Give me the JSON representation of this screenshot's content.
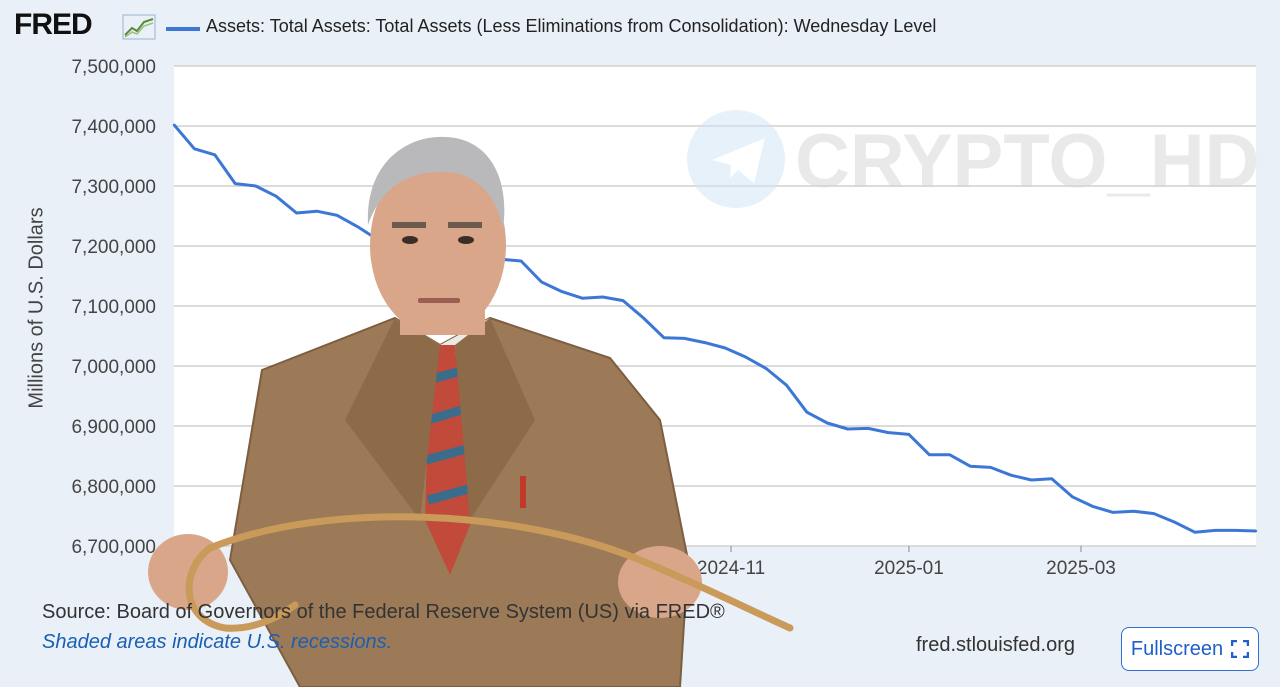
{
  "header": {
    "logo_text": "FRED",
    "legend_label": "Assets: Total Assets: Total Assets (Less Eliminations from Consolidation): Wednesday Level"
  },
  "watermark": {
    "text": "CRYPTO_HD",
    "icon": "telegram-plane-icon"
  },
  "footer": {
    "source": "Source: Board of Governors of the Federal Reserve System (US) via FRED®",
    "note": "Shaded areas indicate U.S. recessions.",
    "site": "fred.stlouisfed.org",
    "fullscreen_label": "Fullscreen",
    "fullscreen_icon": "expand-icon"
  },
  "colors": {
    "line": "#3d77d6",
    "background": "#eaf0f8",
    "plot_bg": "#ffffff",
    "grid": "#cfcfcf"
  },
  "chart_data": {
    "type": "line",
    "title": "",
    "xlabel": "",
    "ylabel": "Millions of U.S. Dollars",
    "ylim": [
      6700000,
      7500000
    ],
    "yticks": [
      "7,500,000",
      "7,400,000",
      "7,300,000",
      "7,200,000",
      "7,100,000",
      "7,000,000",
      "6,900,000",
      "6,800,000",
      "6,700,000"
    ],
    "xticks": [
      {
        "label": "2024-11",
        "date": "2024-11-01"
      },
      {
        "label": "2025-01",
        "date": "2025-01-01"
      },
      {
        "label": "2025-03",
        "date": "2025-03-01"
      }
    ],
    "grid": true,
    "series": [
      {
        "name": "Assets: Total Assets: Total Assets (Less Eliminations from Consolidation): Wednesday Level",
        "points": [
          [
            "2024-04-24",
            7402000
          ],
          [
            "2024-05-01",
            7362000
          ],
          [
            "2024-05-08",
            7352000
          ],
          [
            "2024-05-15",
            7304000
          ],
          [
            "2024-05-22",
            7300000
          ],
          [
            "2024-05-29",
            7283000
          ],
          [
            "2024-06-05",
            7255000
          ],
          [
            "2024-06-12",
            7258000
          ],
          [
            "2024-06-19",
            7251000
          ],
          [
            "2024-06-26",
            7232000
          ],
          [
            "2024-07-03",
            7210000
          ],
          [
            "2024-07-10",
            7200000
          ],
          [
            "2024-07-17",
            7195000
          ],
          [
            "2024-07-24",
            7192000
          ],
          [
            "2024-07-31",
            7188000
          ],
          [
            "2024-08-07",
            7183000
          ],
          [
            "2024-08-14",
            7178000
          ],
          [
            "2024-08-21",
            7175000
          ],
          [
            "2024-08-28",
            7140000
          ],
          [
            "2024-09-04",
            7124000
          ],
          [
            "2024-09-11",
            7113000
          ],
          [
            "2024-09-18",
            7115000
          ],
          [
            "2024-09-25",
            7109000
          ],
          [
            "2024-10-02",
            7080000
          ],
          [
            "2024-10-09",
            7047000
          ],
          [
            "2024-10-16",
            7046000
          ],
          [
            "2024-10-23",
            7039000
          ],
          [
            "2024-10-30",
            7030000
          ],
          [
            "2024-11-06",
            7015000
          ],
          [
            "2024-11-13",
            6996000
          ],
          [
            "2024-11-20",
            6968000
          ],
          [
            "2024-11-27",
            6923000
          ],
          [
            "2024-12-04",
            6905000
          ],
          [
            "2024-12-11",
            6895000
          ],
          [
            "2024-12-18",
            6896000
          ],
          [
            "2024-12-25",
            6889000
          ],
          [
            "2025-01-01",
            6886000
          ],
          [
            "2025-01-08",
            6852000
          ],
          [
            "2025-01-15",
            6852000
          ],
          [
            "2025-01-22",
            6833000
          ],
          [
            "2025-01-29",
            6831000
          ],
          [
            "2025-02-05",
            6818000
          ],
          [
            "2025-02-12",
            6810000
          ],
          [
            "2025-02-19",
            6812000
          ],
          [
            "2025-02-26",
            6782000
          ],
          [
            "2025-03-05",
            6766000
          ],
          [
            "2025-03-12",
            6756000
          ],
          [
            "2025-03-19",
            6758000
          ],
          [
            "2025-03-26",
            6754000
          ],
          [
            "2025-04-02",
            6740000
          ],
          [
            "2025-04-09",
            6723000
          ],
          [
            "2025-04-16",
            6726000
          ],
          [
            "2025-04-23",
            6726000
          ],
          [
            "2025-04-30",
            6725000
          ]
        ]
      }
    ]
  }
}
